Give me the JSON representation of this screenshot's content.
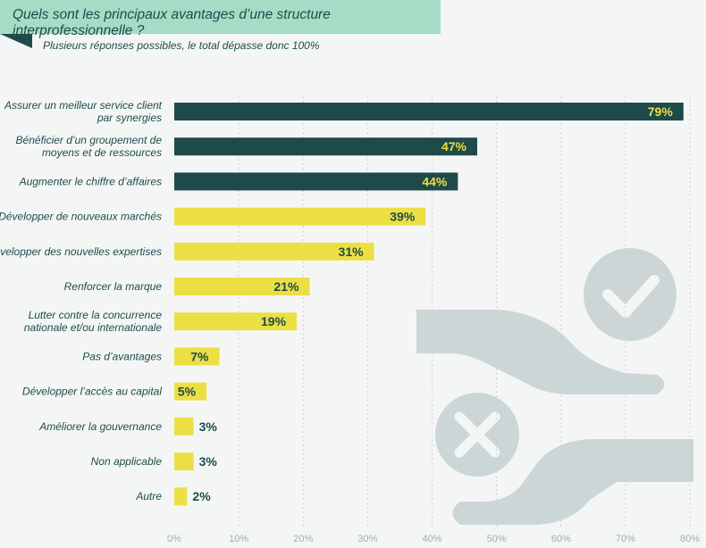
{
  "chart_data": {
    "type": "bar",
    "orientation": "horizontal",
    "title": "Quels sont les principaux avantages d’une structure interprofessionnelle ?",
    "subtitle": "Plusieurs réponses possibles, le total dépasse donc 100%",
    "categories": [
      "Assurer un meilleur service client\npar synergies",
      "Bénéficier d’un groupement de\nmoyens et de ressources",
      "Augmenter le chiffre d’affaires",
      "Développer de nouveaux marchés",
      "Développer des nouvelles expertises",
      "Renforcer la marque",
      "Lutter contre la concurrence\nnationale et/ou internationale",
      "Pas d’avantages",
      "Développer l’accès au capital",
      "Améliorer la gouvernance",
      "Non applicable",
      "Autre"
    ],
    "values": [
      79,
      47,
      44,
      39,
      31,
      21,
      19,
      7,
      5,
      3,
      3,
      2
    ],
    "value_labels": [
      "79%",
      "47%",
      "44%",
      "39%",
      "31%",
      "21%",
      "19%",
      "7%",
      "5%",
      "3%",
      "3%",
      "2%"
    ],
    "highlight_count": 3,
    "xlim": [
      0,
      80
    ],
    "xticks": [
      "0%",
      "10%",
      "20%",
      "30%",
      "40%",
      "50%",
      "60%",
      "70%",
      "80%"
    ],
    "grid": "vertical dotted",
    "colors": {
      "highlight_bar": "#1f4a4a",
      "bar": "#ecdf44",
      "highlight_label": "#ecdf44",
      "label": "#1f4a4a",
      "text": "#1f4a4a",
      "title_band": "#a6dcc5",
      "grid": "#c9d2d2",
      "tick": "#a3adad",
      "decoration": "#ccd6d6",
      "decoration_mark": "#f4f6f6"
    }
  }
}
